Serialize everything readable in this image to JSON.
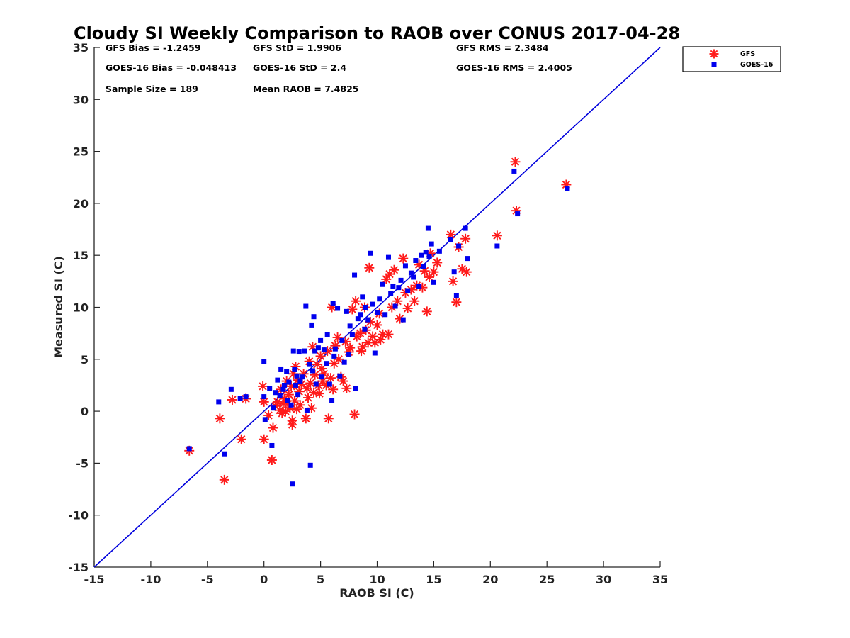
{
  "chart_data": {
    "type": "scatter",
    "title": "Cloudy SI Weekly Comparison to RAOB over CONUS 2017-04-28",
    "xlabel": "RAOB SI (C)",
    "ylabel": "Measured SI (C)",
    "xlim": [
      -15,
      35
    ],
    "ylim": [
      -15,
      35
    ],
    "xticks": [
      -15,
      -10,
      -5,
      0,
      5,
      10,
      15,
      20,
      25,
      30,
      35
    ],
    "yticks": [
      -15,
      -10,
      -5,
      0,
      5,
      10,
      15,
      20,
      25,
      30,
      35
    ],
    "grid": false,
    "legend_position": "top-right",
    "reference_line": {
      "from": [
        -15,
        -15
      ],
      "to": [
        35,
        35
      ],
      "color": "#0000dd"
    },
    "stats": [
      [
        "GFS Bias = -1.2459",
        "GFS StD = 1.9906",
        "GFS RMS = 2.3484"
      ],
      [
        "GOES-16 Bias = -0.048413",
        "GOES-16 StD = 2.4",
        "GOES-16 RMS = 2.4005"
      ],
      [
        "Sample Size = 189",
        "Mean RAOB = 7.4825",
        ""
      ]
    ],
    "series": [
      {
        "name": "GFS",
        "marker": "asterisk",
        "color": "#ff1a1a",
        "points": [
          [
            -6.6,
            -3.8
          ],
          [
            -3.9,
            -0.7
          ],
          [
            -3.5,
            -6.6
          ],
          [
            -2.8,
            1.1
          ],
          [
            -2.0,
            -2.7
          ],
          [
            -1.6,
            1.2
          ],
          [
            -0.1,
            2.4
          ],
          [
            0.0,
            0.9
          ],
          [
            0.0,
            -2.7
          ],
          [
            0.4,
            -0.4
          ],
          [
            0.7,
            -4.7
          ],
          [
            0.8,
            -1.6
          ],
          [
            1.0,
            0.5
          ],
          [
            1.2,
            0.9
          ],
          [
            1.4,
            0.1
          ],
          [
            1.5,
            2.1
          ],
          [
            1.6,
            -0.2
          ],
          [
            1.7,
            0.7
          ],
          [
            1.8,
            1.2
          ],
          [
            1.9,
            0.0
          ],
          [
            2.0,
            2.9
          ],
          [
            2.1,
            0.7
          ],
          [
            2.2,
            1.6
          ],
          [
            2.3,
            0.3
          ],
          [
            2.4,
            2.4
          ],
          [
            2.5,
            -0.9
          ],
          [
            2.5,
            -1.3
          ],
          [
            2.6,
            3.6
          ],
          [
            2.7,
            1.0
          ],
          [
            2.8,
            4.3
          ],
          [
            2.9,
            0.2
          ],
          [
            3.0,
            3.0
          ],
          [
            3.1,
            1.9
          ],
          [
            3.2,
            0.6
          ],
          [
            3.3,
            2.6
          ],
          [
            3.5,
            3.6
          ],
          [
            3.7,
            -0.7
          ],
          [
            3.8,
            2.2
          ],
          [
            3.9,
            1.3
          ],
          [
            4.0,
            4.8
          ],
          [
            4.1,
            2.7
          ],
          [
            4.2,
            0.3
          ],
          [
            4.3,
            6.2
          ],
          [
            4.4,
            1.8
          ],
          [
            4.5,
            3.5
          ],
          [
            4.7,
            4.5
          ],
          [
            4.8,
            2.5
          ],
          [
            4.9,
            1.7
          ],
          [
            5.0,
            5.3
          ],
          [
            5.1,
            4.1
          ],
          [
            5.2,
            2.9
          ],
          [
            5.3,
            3.6
          ],
          [
            5.5,
            2.5
          ],
          [
            5.6,
            5.8
          ],
          [
            5.7,
            -0.7
          ],
          [
            5.9,
            3.2
          ],
          [
            6.0,
            10.0
          ],
          [
            6.1,
            2.1
          ],
          [
            6.2,
            4.6
          ],
          [
            6.3,
            6.3
          ],
          [
            6.5,
            7.1
          ],
          [
            6.6,
            5.0
          ],
          [
            6.8,
            3.3
          ],
          [
            7.0,
            2.9
          ],
          [
            7.2,
            6.7
          ],
          [
            7.3,
            2.2
          ],
          [
            7.5,
            5.7
          ],
          [
            7.6,
            6.1
          ],
          [
            7.8,
            9.8
          ],
          [
            8.0,
            -0.3
          ],
          [
            8.1,
            10.6
          ],
          [
            8.2,
            7.2
          ],
          [
            8.5,
            7.5
          ],
          [
            8.6,
            5.8
          ],
          [
            8.7,
            6.2
          ],
          [
            8.9,
            10.0
          ],
          [
            9.0,
            7.8
          ],
          [
            9.2,
            6.6
          ],
          [
            9.3,
            13.8
          ],
          [
            9.4,
            8.6
          ],
          [
            9.6,
            7.2
          ],
          [
            9.8,
            6.6
          ],
          [
            10.0,
            8.3
          ],
          [
            10.2,
            9.4
          ],
          [
            10.3,
            6.9
          ],
          [
            10.5,
            7.4
          ],
          [
            10.8,
            12.7
          ],
          [
            11.0,
            7.4
          ],
          [
            11.1,
            13.2
          ],
          [
            11.3,
            10.0
          ],
          [
            11.5,
            13.6
          ],
          [
            11.8,
            10.6
          ],
          [
            12.0,
            8.9
          ],
          [
            12.3,
            14.7
          ],
          [
            12.5,
            11.4
          ],
          [
            12.7,
            9.9
          ],
          [
            13.0,
            11.7
          ],
          [
            13.3,
            10.6
          ],
          [
            13.5,
            12.1
          ],
          [
            13.7,
            14.1
          ],
          [
            14.0,
            11.9
          ],
          [
            14.2,
            13.5
          ],
          [
            14.4,
            9.6
          ],
          [
            14.6,
            12.9
          ],
          [
            14.7,
            15.2
          ],
          [
            15.0,
            13.4
          ],
          [
            15.3,
            14.3
          ],
          [
            16.5,
            17.0
          ],
          [
            16.7,
            12.5
          ],
          [
            17.0,
            10.5
          ],
          [
            17.2,
            15.8
          ],
          [
            17.5,
            13.7
          ],
          [
            17.8,
            16.6
          ],
          [
            17.9,
            13.4
          ],
          [
            20.6,
            16.9
          ],
          [
            22.2,
            24.0
          ],
          [
            22.3,
            19.3
          ],
          [
            26.7,
            21.8
          ]
        ]
      },
      {
        "name": "GOES-16",
        "marker": "square",
        "color": "#0000ee",
        "points": [
          [
            -6.6,
            -3.6
          ],
          [
            -4.0,
            0.9
          ],
          [
            -3.5,
            -4.1
          ],
          [
            -2.9,
            2.1
          ],
          [
            -2.1,
            1.2
          ],
          [
            -1.6,
            1.4
          ],
          [
            0.0,
            4.8
          ],
          [
            0.0,
            1.4
          ],
          [
            0.1,
            -0.8
          ],
          [
            0.5,
            2.2
          ],
          [
            0.7,
            -3.3
          ],
          [
            0.8,
            0.3
          ],
          [
            1.0,
            1.8
          ],
          [
            1.2,
            3.0
          ],
          [
            1.4,
            1.5
          ],
          [
            1.5,
            4.0
          ],
          [
            1.7,
            2.1
          ],
          [
            1.8,
            2.5
          ],
          [
            2.0,
            3.8
          ],
          [
            2.1,
            1.0
          ],
          [
            2.2,
            2.8
          ],
          [
            2.4,
            0.6
          ],
          [
            2.5,
            -7.0
          ],
          [
            2.6,
            5.8
          ],
          [
            2.7,
            4.0
          ],
          [
            2.8,
            2.5
          ],
          [
            2.9,
            3.4
          ],
          [
            3.0,
            1.6
          ],
          [
            3.1,
            5.7
          ],
          [
            3.2,
            2.9
          ],
          [
            3.4,
            3.3
          ],
          [
            3.6,
            5.8
          ],
          [
            3.7,
            10.1
          ],
          [
            3.8,
            0.1
          ],
          [
            4.0,
            4.5
          ],
          [
            4.1,
            -5.2
          ],
          [
            4.2,
            8.3
          ],
          [
            4.3,
            3.9
          ],
          [
            4.4,
            9.1
          ],
          [
            4.5,
            5.8
          ],
          [
            4.6,
            2.6
          ],
          [
            4.8,
            6.1
          ],
          [
            5.0,
            6.8
          ],
          [
            5.1,
            3.3
          ],
          [
            5.3,
            5.9
          ],
          [
            5.5,
            4.6
          ],
          [
            5.6,
            7.4
          ],
          [
            5.8,
            2.6
          ],
          [
            6.0,
            1.0
          ],
          [
            6.1,
            10.4
          ],
          [
            6.2,
            5.3
          ],
          [
            6.3,
            6.0
          ],
          [
            6.5,
            9.9
          ],
          [
            6.7,
            3.4
          ],
          [
            6.9,
            6.8
          ],
          [
            7.1,
            4.7
          ],
          [
            7.3,
            9.6
          ],
          [
            7.5,
            5.5
          ],
          [
            7.6,
            8.2
          ],
          [
            7.8,
            7.4
          ],
          [
            8.0,
            13.1
          ],
          [
            8.1,
            2.2
          ],
          [
            8.3,
            8.9
          ],
          [
            8.5,
            9.3
          ],
          [
            8.7,
            11.0
          ],
          [
            8.9,
            7.9
          ],
          [
            9.0,
            10.0
          ],
          [
            9.2,
            8.8
          ],
          [
            9.4,
            15.2
          ],
          [
            9.6,
            10.3
          ],
          [
            9.8,
            5.6
          ],
          [
            10.0,
            9.5
          ],
          [
            10.2,
            10.8
          ],
          [
            10.5,
            12.2
          ],
          [
            10.7,
            9.3
          ],
          [
            11.0,
            14.8
          ],
          [
            11.2,
            11.3
          ],
          [
            11.4,
            12.0
          ],
          [
            11.6,
            10.1
          ],
          [
            11.9,
            11.9
          ],
          [
            12.1,
            12.6
          ],
          [
            12.3,
            8.8
          ],
          [
            12.5,
            14.0
          ],
          [
            12.7,
            11.6
          ],
          [
            13.0,
            13.3
          ],
          [
            13.2,
            12.9
          ],
          [
            13.4,
            14.5
          ],
          [
            13.7,
            12.0
          ],
          [
            13.9,
            15.0
          ],
          [
            14.1,
            13.9
          ],
          [
            14.3,
            15.3
          ],
          [
            14.5,
            17.6
          ],
          [
            14.6,
            14.9
          ],
          [
            14.8,
            16.1
          ],
          [
            15.0,
            12.4
          ],
          [
            15.5,
            15.4
          ],
          [
            16.5,
            16.5
          ],
          [
            16.8,
            13.4
          ],
          [
            17.0,
            11.1
          ],
          [
            17.2,
            15.9
          ],
          [
            17.8,
            17.6
          ],
          [
            18.0,
            14.7
          ],
          [
            20.6,
            15.9
          ],
          [
            22.1,
            23.1
          ],
          [
            22.4,
            19.0
          ],
          [
            26.8,
            21.4
          ]
        ]
      }
    ]
  }
}
